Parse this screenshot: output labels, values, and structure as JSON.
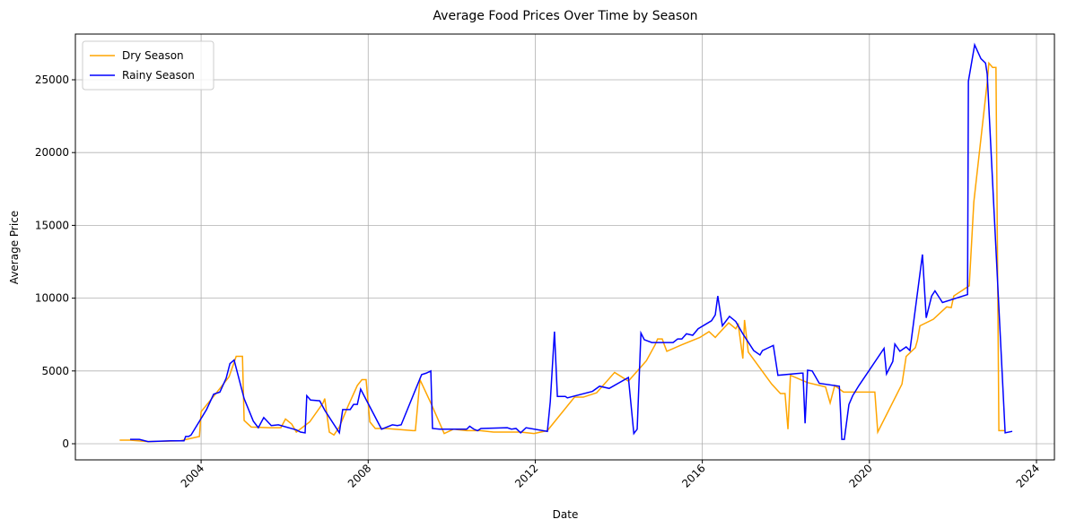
{
  "chart_data": {
    "type": "line",
    "title": "Average Food Prices Over Time by Season",
    "x_label": "Date",
    "y_label": "Average Price",
    "xlim": [
      2000.99,
      2024.43
    ],
    "ylim": [
      -1108,
      28140
    ],
    "xticks": [
      2004,
      2008,
      2012,
      2016,
      2020,
      2024
    ],
    "yticks": [
      0,
      5000,
      10000,
      15000,
      20000,
      25000
    ],
    "grid": true,
    "legend": "upper left",
    "series": [
      {
        "name": "Dry Season",
        "color": "orange",
        "x": [
          2002.05,
          2002.3,
          2002.73,
          2003.5,
          2003.96,
          2004.0,
          2004.34,
          2004.67,
          2004.84,
          2004.99,
          2005.03,
          2005.2,
          2005.63,
          2005.91,
          2006.02,
          2006.17,
          2006.28,
          2006.6,
          2006.92,
          2006.96,
          2007.07,
          2007.18,
          2007.31,
          2007.52,
          2007.74,
          2007.85,
          2007.95,
          2008.04,
          2008.17,
          2008.43,
          2009.07,
          2009.13,
          2009.24,
          2009.5,
          2009.82,
          2010.04,
          2010.36,
          2010.68,
          2011.0,
          2011.43,
          2011.65,
          2011.97,
          2012.29,
          2012.94,
          2013.15,
          2013.47,
          2013.9,
          2014.23,
          2014.66,
          2014.87,
          2014.93,
          2015.04,
          2015.09,
          2015.15,
          2015.51,
          2015.94,
          2016.16,
          2016.31,
          2016.37,
          2016.63,
          2016.8,
          2016.86,
          2016.97,
          2017.01,
          2017.1,
          2017.66,
          2017.87,
          2017.98,
          2018.05,
          2018.11,
          2018.52,
          2018.95,
          2019.06,
          2019.17,
          2019.38,
          2020.13,
          2020.2,
          2020.78,
          2020.88,
          2021.1,
          2021.15,
          2021.21,
          2021.53,
          2021.85,
          2021.96,
          2022.02,
          2022.39,
          2022.5,
          2022.82,
          2022.86,
          2022.95,
          2023.03,
          2023.1,
          2023.25
        ],
        "values": [
          250,
          250,
          150,
          200,
          500,
          2200,
          3400,
          4600,
          6000,
          6000,
          1600,
          1150,
          1100,
          1100,
          1700,
          1350,
          800,
          1500,
          2800,
          3100,
          800,
          600,
          1150,
          2600,
          4000,
          4400,
          4400,
          1500,
          1050,
          1050,
          900,
          900,
          4400,
          2800,
          700,
          1000,
          900,
          900,
          800,
          800,
          800,
          700,
          900,
          3200,
          3200,
          3500,
          4900,
          4300,
          5700,
          6800,
          7200,
          7200,
          6800,
          6350,
          6800,
          7300,
          7700,
          7300,
          7500,
          8300,
          7900,
          8200,
          5850,
          8500,
          6300,
          4100,
          3450,
          3450,
          1000,
          4700,
          4200,
          3900,
          2800,
          4000,
          3550,
          3550,
          800,
          4100,
          6000,
          6600,
          7100,
          8100,
          8550,
          9400,
          9350,
          10150,
          10850,
          16600,
          24800,
          26150,
          25850,
          25850,
          900,
          900
        ]
      },
      {
        "name": "Rainy Season",
        "color": "blue",
        "x": [
          2002.3,
          2002.52,
          2002.73,
          2003.27,
          2003.59,
          2003.63,
          2003.7,
          2003.76,
          2004.13,
          2004.3,
          2004.45,
          2004.6,
          2004.69,
          2004.79,
          2005.03,
          2005.25,
          2005.37,
          2005.5,
          2005.68,
          2005.85,
          2006.28,
          2006.38,
          2006.49,
          2006.53,
          2006.62,
          2006.84,
          2006.96,
          2007.31,
          2007.39,
          2007.57,
          2007.65,
          2007.74,
          2007.82,
          2008.32,
          2008.58,
          2008.7,
          2008.79,
          2009.28,
          2009.39,
          2009.5,
          2009.54,
          2009.71,
          2010.36,
          2010.43,
          2010.53,
          2010.62,
          2010.7,
          2011.33,
          2011.43,
          2011.54,
          2011.65,
          2011.78,
          2012.29,
          2012.36,
          2012.46,
          2012.53,
          2012.72,
          2012.77,
          2013.37,
          2013.54,
          2013.77,
          2014.23,
          2014.36,
          2014.44,
          2014.53,
          2014.61,
          2014.79,
          2015.3,
          2015.41,
          2015.51,
          2015.62,
          2015.77,
          2015.9,
          2016.22,
          2016.31,
          2016.37,
          2016.48,
          2016.65,
          2016.8,
          2016.97,
          2017.23,
          2017.38,
          2017.44,
          2017.55,
          2017.7,
          2017.81,
          2018.37,
          2018.41,
          2018.46,
          2018.52,
          2018.63,
          2018.8,
          2019.28,
          2019.34,
          2019.4,
          2019.51,
          2019.6,
          2019.75,
          2020.35,
          2020.41,
          2020.56,
          2020.61,
          2020.73,
          2020.88,
          2020.97,
          2021.27,
          2021.36,
          2021.49,
          2021.57,
          2021.75,
          2022.35,
          2022.37,
          2022.52,
          2022.67,
          2022.78,
          2022.82,
          2023.25,
          2023.42
        ],
        "values": [
          300,
          300,
          150,
          200,
          200,
          500,
          500,
          600,
          2350,
          3400,
          3550,
          4500,
          5500,
          5750,
          3100,
          1550,
          1100,
          1800,
          1250,
          1300,
          950,
          800,
          750,
          3300,
          3000,
          2950,
          2300,
          750,
          2350,
          2350,
          2700,
          2700,
          3750,
          1000,
          1300,
          1250,
          1300,
          4750,
          4850,
          5000,
          1050,
          1000,
          1000,
          1200,
          1000,
          900,
          1050,
          1100,
          1000,
          1050,
          750,
          1100,
          850,
          2900,
          7700,
          3250,
          3250,
          3150,
          3600,
          3950,
          3800,
          4550,
          700,
          1000,
          7600,
          7150,
          6950,
          6950,
          7200,
          7200,
          7550,
          7450,
          7900,
          8450,
          8850,
          10150,
          8100,
          8750,
          8400,
          7550,
          6400,
          6100,
          6400,
          6550,
          6750,
          4700,
          4850,
          4850,
          1400,
          5050,
          5000,
          4150,
          3950,
          300,
          300,
          2700,
          3300,
          4000,
          6550,
          4800,
          5650,
          6850,
          6350,
          6650,
          6400,
          13000,
          8650,
          10150,
          10500,
          9700,
          10250,
          24900,
          27400,
          26450,
          26150,
          25400,
          750,
          850
        ]
      }
    ]
  }
}
